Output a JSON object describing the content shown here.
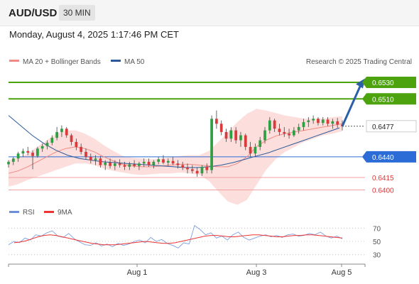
{
  "header": {
    "symbol": "AUD/USD",
    "timeframe": "30 MIN"
  },
  "datetime": "Monday, August 4, 2025 1:17:46 PM CET",
  "legend": {
    "ma20": "MA 20 + Bollinger Bands",
    "ma50": "MA 50",
    "copyright": "Research © 2025 Trading Central",
    "rsi": "RSI",
    "ma9": "9MA"
  },
  "colors": {
    "green": "#4ca30d",
    "blue": "#2b6cd6",
    "red": "#e06060",
    "bands": "#fbd8d6",
    "up": "#2ea043",
    "down": "#d93a3a",
    "current_bg": "#ffffff"
  },
  "levels": [
    {
      "value": 0.653,
      "label": "0.6530",
      "style": "green"
    },
    {
      "value": 0.651,
      "label": "0.6510",
      "style": "green"
    },
    {
      "value": 0.6477,
      "label": "0.6477",
      "style": "current"
    },
    {
      "value": 0.644,
      "label": "0.6440",
      "style": "blue"
    },
    {
      "value": 0.6415,
      "label": "0.6415",
      "style": "red"
    },
    {
      "value": 0.64,
      "label": "0.6400",
      "style": "red"
    }
  ],
  "chart_data": {
    "type": "candlestick",
    "x_labels": [
      "Aug 1",
      "Aug 3",
      "Aug 5"
    ],
    "price_range": [
      0.6385,
      0.6548
    ],
    "candles": [
      [
        0.6431,
        0.6436,
        0.6427,
        0.6434
      ],
      [
        0.6434,
        0.644,
        0.643,
        0.6438
      ],
      [
        0.6438,
        0.6446,
        0.6434,
        0.6444
      ],
      [
        0.6444,
        0.645,
        0.644,
        0.6447
      ],
      [
        0.6447,
        0.6452,
        0.6442,
        0.6445
      ],
      [
        0.6445,
        0.6448,
        0.6425,
        0.6441
      ],
      [
        0.6441,
        0.6452,
        0.6439,
        0.645
      ],
      [
        0.645,
        0.6456,
        0.6446,
        0.6453
      ],
      [
        0.6453,
        0.646,
        0.6449,
        0.6457
      ],
      [
        0.6457,
        0.6466,
        0.6454,
        0.6463
      ],
      [
        0.6463,
        0.6476,
        0.646,
        0.647
      ],
      [
        0.647,
        0.6478,
        0.6464,
        0.6474
      ],
      [
        0.6474,
        0.6476,
        0.6463,
        0.6466
      ],
      [
        0.6466,
        0.6468,
        0.6454,
        0.6458
      ],
      [
        0.6458,
        0.6462,
        0.6448,
        0.6452
      ],
      [
        0.6452,
        0.6456,
        0.6443,
        0.6446
      ],
      [
        0.6446,
        0.645,
        0.6437,
        0.644
      ],
      [
        0.644,
        0.6444,
        0.6432,
        0.6436
      ],
      [
        0.6436,
        0.6442,
        0.643,
        0.6438
      ],
      [
        0.6438,
        0.6441,
        0.6427,
        0.643
      ],
      [
        0.643,
        0.6436,
        0.6424,
        0.6433
      ],
      [
        0.6433,
        0.6438,
        0.6426,
        0.6429
      ],
      [
        0.6429,
        0.6436,
        0.6424,
        0.6432
      ],
      [
        0.6432,
        0.6437,
        0.6427,
        0.643
      ],
      [
        0.643,
        0.6434,
        0.6424,
        0.6428
      ],
      [
        0.6428,
        0.6434,
        0.6424,
        0.6431
      ],
      [
        0.6431,
        0.6436,
        0.6427,
        0.6429
      ],
      [
        0.6429,
        0.6434,
        0.6424,
        0.6432
      ],
      [
        0.6432,
        0.6438,
        0.6428,
        0.6434
      ],
      [
        0.6434,
        0.6438,
        0.6428,
        0.643
      ],
      [
        0.643,
        0.6436,
        0.6426,
        0.6434
      ],
      [
        0.6434,
        0.644,
        0.6431,
        0.6437
      ],
      [
        0.6437,
        0.6442,
        0.6431,
        0.6433
      ],
      [
        0.6433,
        0.6438,
        0.6429,
        0.6435
      ],
      [
        0.6435,
        0.644,
        0.643,
        0.6432
      ],
      [
        0.6432,
        0.6436,
        0.6426,
        0.643
      ],
      [
        0.643,
        0.6434,
        0.6424,
        0.6427
      ],
      [
        0.6427,
        0.6432,
        0.642,
        0.6425
      ],
      [
        0.6425,
        0.643,
        0.642,
        0.6423
      ],
      [
        0.6423,
        0.6427,
        0.6416,
        0.642
      ],
      [
        0.642,
        0.643,
        0.6417,
        0.6428
      ],
      [
        0.6428,
        0.6432,
        0.642,
        0.6424
      ],
      [
        0.6424,
        0.649,
        0.642,
        0.6486
      ],
      [
        0.6486,
        0.6496,
        0.6474,
        0.648
      ],
      [
        0.648,
        0.6484,
        0.6466,
        0.647
      ],
      [
        0.647,
        0.6474,
        0.6458,
        0.6462
      ],
      [
        0.6462,
        0.6476,
        0.6458,
        0.6472
      ],
      [
        0.6472,
        0.6476,
        0.6456,
        0.646
      ],
      [
        0.646,
        0.647,
        0.6452,
        0.6466
      ],
      [
        0.6466,
        0.6468,
        0.6448,
        0.6452
      ],
      [
        0.6452,
        0.6458,
        0.644,
        0.6444
      ],
      [
        0.6444,
        0.6456,
        0.644,
        0.6452
      ],
      [
        0.6452,
        0.6464,
        0.6448,
        0.646
      ],
      [
        0.646,
        0.6476,
        0.6456,
        0.6472
      ],
      [
        0.6472,
        0.6488,
        0.6468,
        0.6484
      ],
      [
        0.6484,
        0.6486,
        0.647,
        0.6474
      ],
      [
        0.6474,
        0.648,
        0.6466,
        0.647
      ],
      [
        0.647,
        0.6476,
        0.6464,
        0.6468
      ],
      [
        0.6468,
        0.6474,
        0.6462,
        0.6466
      ],
      [
        0.6466,
        0.6476,
        0.6464,
        0.6472
      ],
      [
        0.6472,
        0.648,
        0.6468,
        0.6476
      ],
      [
        0.6476,
        0.6486,
        0.6472,
        0.6482
      ],
      [
        0.6482,
        0.6488,
        0.6476,
        0.6484
      ],
      [
        0.6484,
        0.649,
        0.648,
        0.6486
      ],
      [
        0.6486,
        0.6488,
        0.6478,
        0.6481
      ],
      [
        0.6481,
        0.6488,
        0.6478,
        0.6485
      ],
      [
        0.6485,
        0.6488,
        0.6477,
        0.648
      ],
      [
        0.648,
        0.6486,
        0.6474,
        0.6483
      ],
      [
        0.6483,
        0.6487,
        0.6475,
        0.6479
      ],
      [
        0.6479,
        0.6484,
        0.6472,
        0.6477
      ]
    ],
    "ma20": [
      0.642,
      0.6423,
      0.6428,
      0.6434,
      0.644,
      0.6446,
      0.645,
      0.6452,
      0.645,
      0.6446,
      0.644,
      0.6435,
      0.6431,
      0.6429,
      0.6428,
      0.6428,
      0.6429,
      0.643,
      0.6431,
      0.6431,
      0.643,
      0.6429,
      0.6428,
      0.6428,
      0.6432,
      0.644,
      0.6452,
      0.646,
      0.6465,
      0.6468,
      0.647,
      0.6472,
      0.6474,
      0.6476,
      0.6478,
      0.648
    ],
    "ma50": [
      0.649,
      0.6478,
      0.6466,
      0.6456,
      0.6448,
      0.6442,
      0.6438,
      0.6436,
      0.6434,
      0.6433,
      0.6432,
      0.6431,
      0.643,
      0.6429,
      0.6428,
      0.6427,
      0.6427,
      0.6428,
      0.643,
      0.6433,
      0.6437,
      0.6441,
      0.6445,
      0.645,
      0.6455,
      0.646,
      0.6465,
      0.647,
      0.6475
    ],
    "rsi_axis": {
      "ticks": [
        30,
        50,
        70
      ],
      "range": [
        20,
        80
      ]
    },
    "rsi": [
      45,
      50,
      48,
      55,
      52,
      60,
      58,
      63,
      66,
      58,
      56,
      62,
      54,
      49,
      45,
      44,
      48,
      43,
      46,
      42,
      47,
      44,
      46,
      50,
      52,
      48,
      56,
      50,
      53,
      47,
      44,
      40,
      48,
      46,
      74,
      68,
      60,
      63,
      55,
      58,
      52,
      60,
      64,
      56,
      52,
      55,
      58,
      60,
      57,
      59,
      56,
      60,
      61,
      58,
      59,
      62,
      60,
      64,
      58,
      55,
      58,
      54
    ],
    "rsi_ma9": [
      48,
      49,
      51,
      54,
      57,
      59,
      60,
      59,
      57,
      55,
      53,
      51,
      49,
      47,
      46,
      45,
      45,
      45,
      46,
      47,
      48,
      49,
      50,
      49,
      48,
      47,
      47,
      48,
      50,
      52,
      54,
      56,
      58,
      59,
      59,
      58,
      57,
      57,
      58,
      59,
      60,
      60,
      59,
      58,
      57,
      57,
      58,
      59,
      59,
      60,
      60,
      59,
      58,
      57,
      56,
      55
    ]
  }
}
